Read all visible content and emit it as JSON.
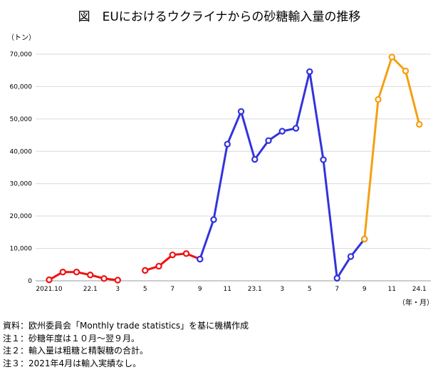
{
  "chart_data": {
    "type": "line",
    "title": "図　EUにおけるウクライナからの砂糖輸入量の推移",
    "y_unit_label": "（トン）",
    "x_unit_label": "（年・月）",
    "ylim": [
      0,
      70000
    ],
    "y_ticks": [
      0,
      10000,
      20000,
      30000,
      40000,
      50000,
      60000,
      70000
    ],
    "y_tick_labels": [
      "0",
      "10,000",
      "20,000",
      "30,000",
      "40,000",
      "50,000",
      "60,000",
      "70,000"
    ],
    "grid": true,
    "x": [
      "2021-10",
      "2021-11",
      "2021-12",
      "2022-01",
      "2022-02",
      "2022-03",
      "2022-04",
      "2022-05",
      "2022-06",
      "2022-07",
      "2022-08",
      "2022-09",
      "2022-10",
      "2022-11",
      "2022-12",
      "2023-01",
      "2023-02",
      "2023-03",
      "2023-04",
      "2023-05",
      "2023-06",
      "2023-07",
      "2023-08",
      "2023-09",
      "2023-10",
      "2023-11",
      "2023-12",
      "2024-01"
    ],
    "x_tick_labels": [
      "2021.10",
      "",
      "",
      "22.1",
      "",
      "3",
      "",
      "5",
      "",
      "7",
      "",
      "9",
      "",
      "11",
      "",
      "23.1",
      "",
      "3",
      "",
      "5",
      "",
      "7",
      "",
      "9",
      "",
      "11",
      "",
      "24.1"
    ],
    "series": [
      {
        "color": "#ee1111",
        "values": [
          300,
          2700,
          2700,
          1800,
          700,
          200,
          null,
          null,
          null,
          null,
          null,
          null,
          null,
          null,
          null,
          null,
          null,
          null,
          null,
          null,
          null,
          null,
          null,
          null,
          null,
          null,
          null,
          null
        ]
      },
      {
        "color": "#ee1111",
        "values": [
          null,
          null,
          null,
          null,
          null,
          null,
          null,
          3200,
          4500,
          8000,
          8400,
          6700,
          null,
          null,
          null,
          null,
          null,
          null,
          null,
          null,
          null,
          null,
          null,
          null,
          null,
          null,
          null,
          null
        ]
      },
      {
        "color": "#3333dd",
        "values": [
          null,
          null,
          null,
          null,
          null,
          null,
          null,
          null,
          null,
          null,
          null,
          6700,
          18900,
          42200,
          52300,
          37500,
          43300,
          46200,
          47100,
          64600,
          37400,
          800,
          7500,
          12900,
          null,
          null,
          null,
          null
        ]
      },
      {
        "color": "#f5a011",
        "values": [
          null,
          null,
          null,
          null,
          null,
          null,
          null,
          null,
          null,
          null,
          null,
          null,
          null,
          null,
          null,
          null,
          null,
          null,
          null,
          null,
          null,
          null,
          null,
          12900,
          56000,
          69100,
          64800,
          48300
        ]
      }
    ]
  },
  "notes": [
    "資料：欧州委員会「Monthly trade statistics」を基に機構作成",
    "注１：砂糖年度は１０月～翌９月。",
    "注２：輸入量は粗糖と精製糖の合計。",
    "注３：2021年4月は輸入実績なし。"
  ]
}
